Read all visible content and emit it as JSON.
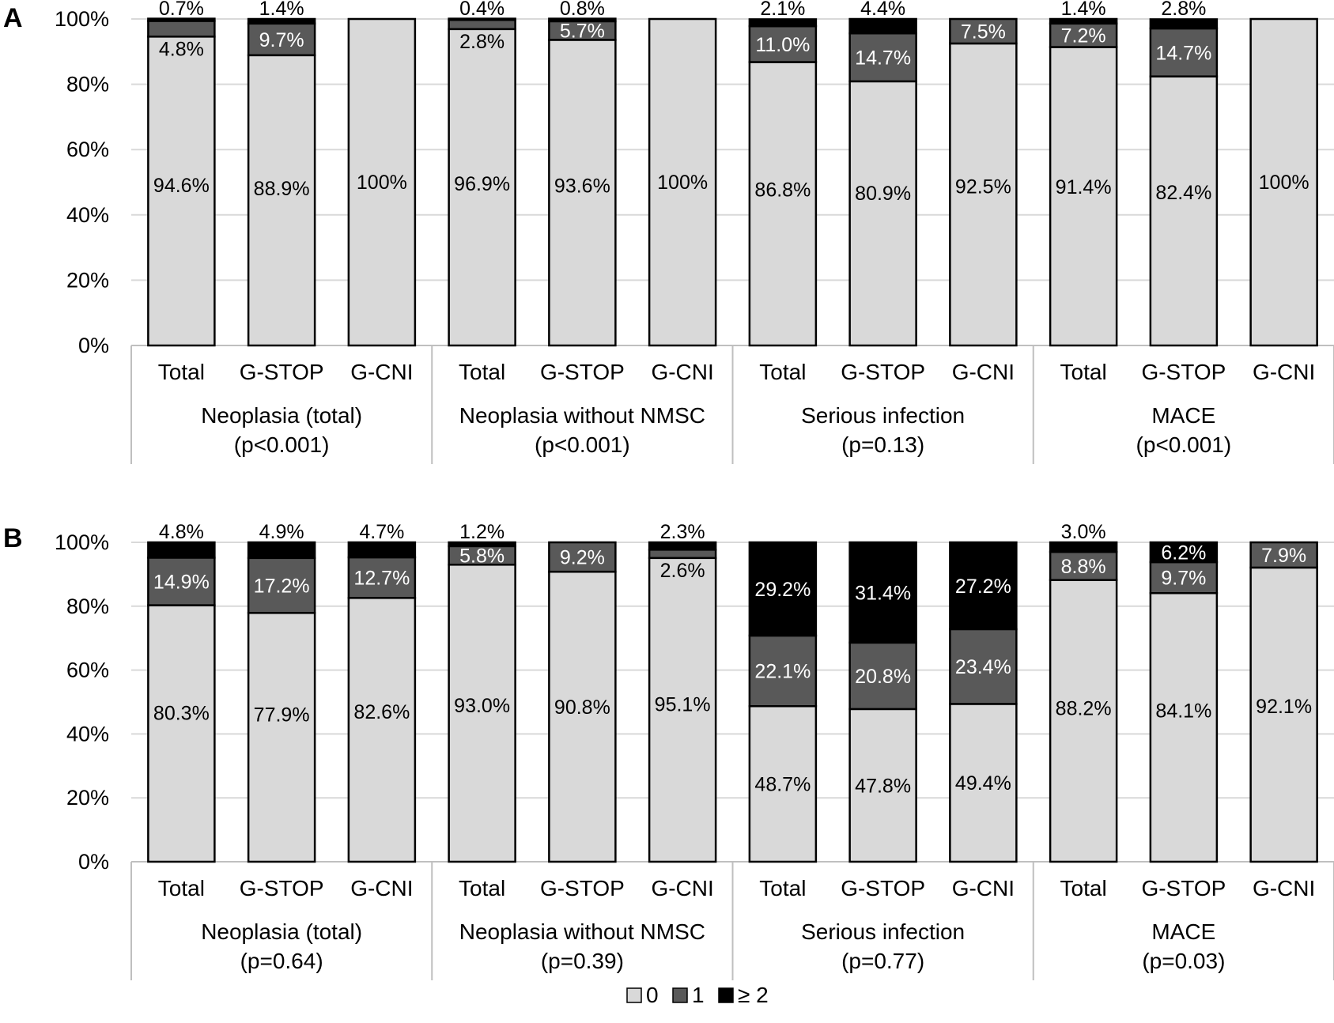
{
  "chart_data": [
    {
      "panel_label": "A",
      "type": "bar",
      "stacked": true,
      "ylim": [
        0,
        100
      ],
      "yticks": [
        "0%",
        "20%",
        "40%",
        "60%",
        "80%",
        "100%"
      ],
      "grid": true,
      "groups": [
        {
          "name": "Neoplasia (total)",
          "p": "(p<0.001)",
          "bars": [
            {
              "label": "Total",
              "values": [
                94.6,
                4.8,
                0.7
              ],
              "labels": [
                "94.6%",
                "4.8%",
                "0.7%"
              ]
            },
            {
              "label": "G-STOP",
              "values": [
                88.9,
                9.7,
                1.4
              ],
              "labels": [
                "88.9%",
                "9.7%",
                "1.4%"
              ]
            },
            {
              "label": "G-CNI",
              "values": [
                100,
                0,
                0
              ],
              "labels": [
                "100%",
                "",
                ""
              ]
            }
          ]
        },
        {
          "name": "Neoplasia without NMSC",
          "p": "(p<0.001)",
          "bars": [
            {
              "label": "Total",
              "values": [
                96.9,
                2.8,
                0.4
              ],
              "labels": [
                "96.9%",
                "2.8%",
                "0.4%"
              ]
            },
            {
              "label": "G-STOP",
              "values": [
                93.6,
                5.7,
                0.8
              ],
              "labels": [
                "93.6%",
                "5.7%",
                "0.8%"
              ]
            },
            {
              "label": "G-CNI",
              "values": [
                100,
                0,
                0
              ],
              "labels": [
                "100%",
                "",
                ""
              ]
            }
          ]
        },
        {
          "name": "Serious infection",
          "p": "(p=0.13)",
          "bars": [
            {
              "label": "Total",
              "values": [
                86.8,
                11.0,
                2.1
              ],
              "labels": [
                "86.8%",
                "11.0%",
                "2.1%"
              ]
            },
            {
              "label": "G-STOP",
              "values": [
                80.9,
                14.7,
                4.4
              ],
              "labels": [
                "80.9%",
                "14.7%",
                "4.4%"
              ]
            },
            {
              "label": "G-CNI",
              "values": [
                92.5,
                7.5,
                0
              ],
              "labels": [
                "92.5%",
                "7.5%",
                ""
              ]
            }
          ]
        },
        {
          "name": "MACE",
          "p": "(p<0.001)",
          "bars": [
            {
              "label": "Total",
              "values": [
                91.4,
                7.2,
                1.4
              ],
              "labels": [
                "91.4%",
                "7.2%",
                "1.4%"
              ]
            },
            {
              "label": "G-STOP",
              "values": [
                82.4,
                14.7,
                2.8
              ],
              "labels": [
                "82.4%",
                "14.7%",
                "2.8%"
              ]
            },
            {
              "label": "G-CNI",
              "values": [
                100,
                0,
                0
              ],
              "labels": [
                "100%",
                "",
                ""
              ]
            }
          ]
        }
      ]
    },
    {
      "panel_label": "B",
      "type": "bar",
      "stacked": true,
      "ylim": [
        0,
        100
      ],
      "yticks": [
        "0%",
        "20%",
        "40%",
        "60%",
        "80%",
        "100%"
      ],
      "grid": true,
      "groups": [
        {
          "name": "Neoplasia (total)",
          "p": "(p=0.64)",
          "bars": [
            {
              "label": "Total",
              "values": [
                80.3,
                14.9,
                4.8
              ],
              "labels": [
                "80.3%",
                "14.9%",
                "4.8%"
              ]
            },
            {
              "label": "G-STOP",
              "values": [
                77.9,
                17.2,
                4.9
              ],
              "labels": [
                "77.9%",
                "17.2%",
                "4.9%"
              ]
            },
            {
              "label": "G-CNI",
              "values": [
                82.6,
                12.7,
                4.7
              ],
              "labels": [
                "82.6%",
                "12.7%",
                "4.7%"
              ]
            }
          ]
        },
        {
          "name": "Neoplasia without NMSC",
          "p": "(p=0.39)",
          "bars": [
            {
              "label": "Total",
              "values": [
                93.0,
                5.8,
                1.2
              ],
              "labels": [
                "93.0%",
                "5.8%",
                "1.2%"
              ]
            },
            {
              "label": "G-STOP",
              "values": [
                90.8,
                9.2,
                0
              ],
              "labels": [
                "90.8%",
                "9.2%",
                ""
              ]
            },
            {
              "label": "G-CNI",
              "values": [
                95.1,
                2.6,
                2.3
              ],
              "labels": [
                "95.1%",
                "2.6%",
                "2.3%"
              ]
            }
          ]
        },
        {
          "name": "Serious infection",
          "p": "(p=0.77)",
          "bars": [
            {
              "label": "Total",
              "values": [
                48.7,
                22.1,
                29.2
              ],
              "labels": [
                "48.7%",
                "22.1%",
                "29.2%"
              ]
            },
            {
              "label": "G-STOP",
              "values": [
                47.8,
                20.8,
                31.4
              ],
              "labels": [
                "47.8%",
                "20.8%",
                "31.4%"
              ]
            },
            {
              "label": "G-CNI",
              "values": [
                49.4,
                23.4,
                27.2
              ],
              "labels": [
                "49.4%",
                "23.4%",
                "27.2%"
              ]
            }
          ]
        },
        {
          "name": "MACE",
          "p": "(p=0.03)",
          "bars": [
            {
              "label": "Total",
              "values": [
                88.2,
                8.8,
                3.0
              ],
              "labels": [
                "88.2%",
                "8.8%",
                "3.0%"
              ]
            },
            {
              "label": "G-STOP",
              "values": [
                84.1,
                9.7,
                6.2
              ],
              "labels": [
                "84.1%",
                "9.7%",
                "6.2%"
              ]
            },
            {
              "label": "G-CNI",
              "values": [
                92.1,
                7.9,
                0
              ],
              "labels": [
                "92.1%",
                "7.9%",
                ""
              ]
            }
          ]
        }
      ]
    }
  ],
  "legend": {
    "placement": "bottom-center",
    "items": [
      {
        "name": "0",
        "color": "#d9d9d9"
      },
      {
        "name": "1",
        "color": "#595959"
      },
      {
        "name": "≥ 2",
        "color": "#000000"
      }
    ]
  }
}
